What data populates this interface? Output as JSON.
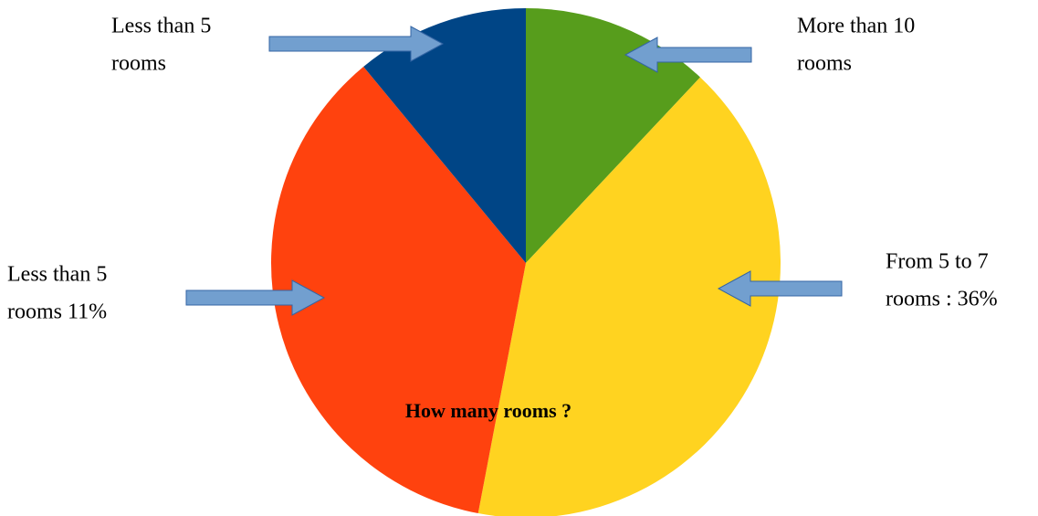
{
  "chart_data": {
    "type": "pie",
    "title": "How many rooms ?",
    "values": [
      12,
      41,
      36,
      11
    ],
    "colors": [
      "#579d1c",
      "#ffd320",
      "#ff420e",
      "#004586"
    ],
    "annotations": [
      {
        "lines": [
          "Less than 5",
          "rooms"
        ]
      },
      {
        "lines": [
          "More than 10",
          "rooms"
        ]
      },
      {
        "lines": [
          "Less than 5",
          "rooms 11%"
        ]
      },
      {
        "lines": [
          "From 5 to 7",
          "rooms : 36%"
        ]
      }
    ]
  }
}
